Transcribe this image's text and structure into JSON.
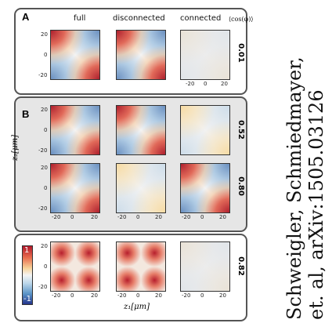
{
  "panels": {
    "a": "A",
    "b": "B"
  },
  "columns": {
    "full": "full",
    "disconnected": "disconnected",
    "connected": "connected",
    "cos_header": "⟨cos(φ)⟩"
  },
  "rows": [
    {
      "cos": "0.01"
    },
    {
      "cos": "0.52"
    },
    {
      "cos": "0.80"
    },
    {
      "cos": "0.82"
    }
  ],
  "ticks": {
    "y": [
      "20",
      "0",
      "-20"
    ],
    "x": [
      "-20",
      "0",
      "20"
    ]
  },
  "axes": {
    "y_label": "z₂[μm]",
    "x_label": "z₁[μm]"
  },
  "colorbar": {
    "max": "1",
    "min": "-1",
    "colors": [
      "#b2182b",
      "#f4f4f4",
      "#24348c"
    ]
  },
  "attribution": {
    "line1": "Schweigler, Schmiedmayer,",
    "line2": "et. al, arXiv:1505.03126"
  }
}
